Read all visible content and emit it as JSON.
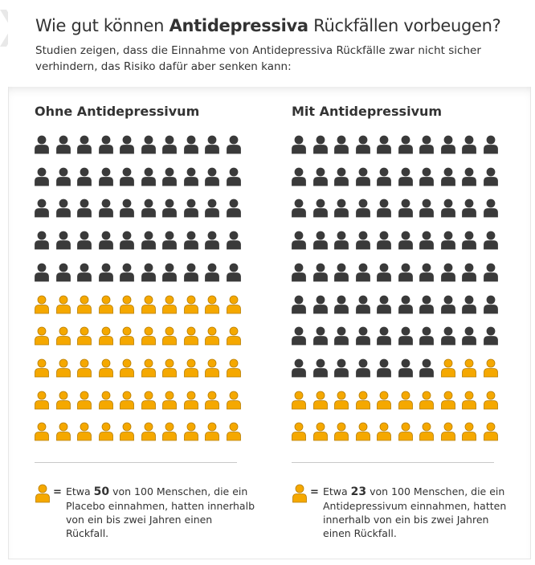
{
  "header": {
    "title_pre": "Wie gut können ",
    "title_bold": "Antidepressiva",
    "title_post": " Rückfällen vorbeugen?",
    "subtitle": "Studien zeigen, dass die Einnahme von Antidepressiva Rückfälle zwar nicht sicher verhindern, das Risiko dafür aber senken kann:"
  },
  "colors": {
    "dark": "#3a3a3a",
    "orange": "#f5a800",
    "orange_stroke": "#b77d00",
    "divider": "#c8c8c8"
  },
  "icon": "person-icon",
  "groups": [
    {
      "title": "Ohne Antidepressivum",
      "total": 100,
      "relapse": 50,
      "legend_pre": "Etwa ",
      "legend_num": "50",
      "legend_post": " von 100 Menschen, die ein Placebo einnahmen, hatten innerhalb von ein bis zwei Jahren einen Rückfall."
    },
    {
      "title": "Mit Antidepressivum",
      "total": 100,
      "relapse": 23,
      "legend_pre": "Etwa ",
      "legend_num": "23",
      "legend_post": " von 100 Menschen, die ein Antidepressivum einnahmen, hatten innerhalb von ein bis zwei Jahren einen Rückfall."
    }
  ],
  "equals": "="
}
